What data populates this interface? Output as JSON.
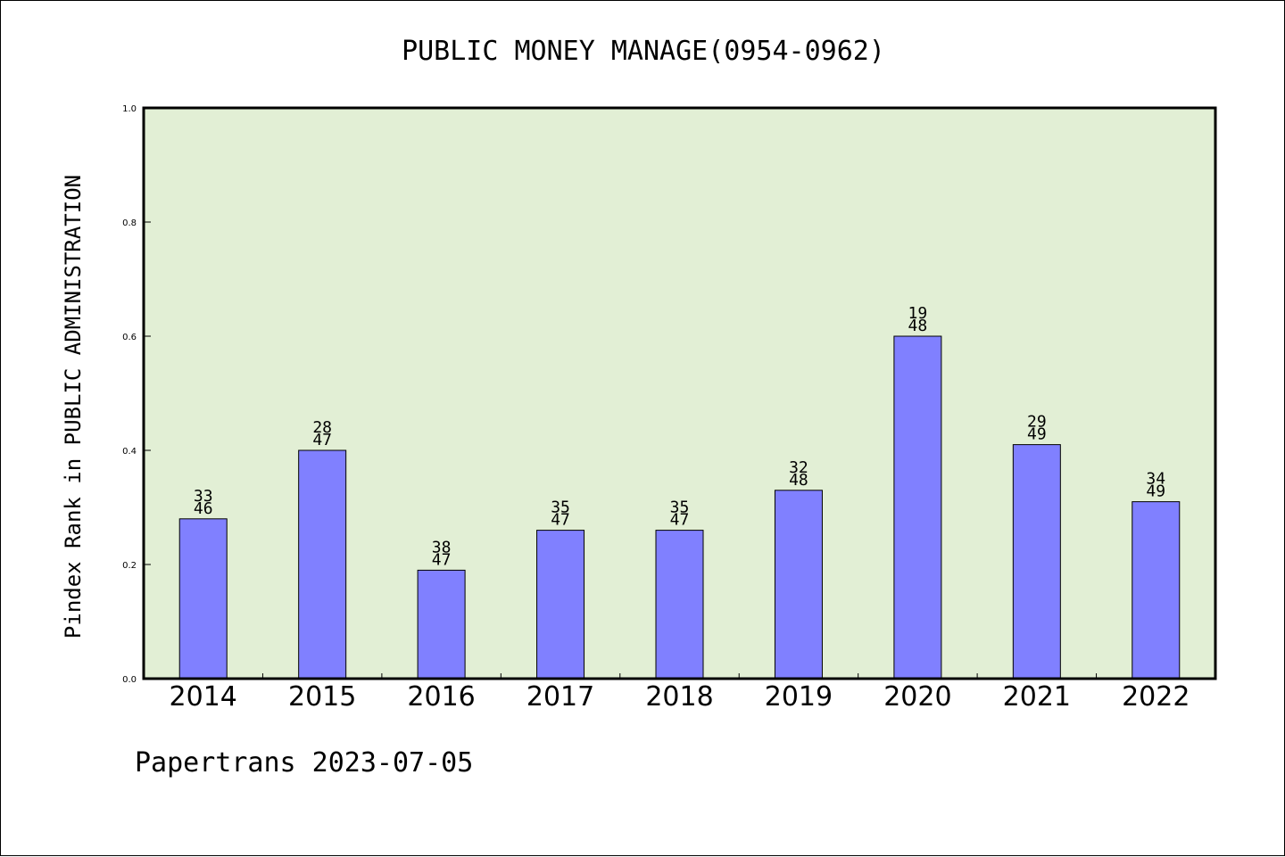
{
  "chart_data": {
    "type": "bar",
    "title": "PUBLIC MONEY MANAGE(0954-0962)",
    "ylabel": "Pindex Rank in PUBLIC ADMINISTRATION",
    "xlabel": "",
    "ylim": [
      0.0,
      1.0
    ],
    "yticks": [
      "0.0",
      "0.2",
      "0.4",
      "0.6",
      "0.8",
      "1.0"
    ],
    "categories": [
      "2014",
      "2015",
      "2016",
      "2017",
      "2018",
      "2019",
      "2020",
      "2021",
      "2022"
    ],
    "values": [
      0.28,
      0.4,
      0.19,
      0.26,
      0.26,
      0.33,
      0.6,
      0.41,
      0.31
    ],
    "rank_labels": [
      "33",
      "28",
      "38",
      "35",
      "35",
      "32",
      "19",
      "29",
      "34"
    ],
    "total_labels": [
      "46",
      "47",
      "47",
      "47",
      "47",
      "48",
      "48",
      "49",
      "49"
    ],
    "grid": false,
    "legend": "none",
    "colors": {
      "plot_background": "#e2efd5",
      "bar_fill": "#8080ff",
      "bar_stroke": "#000000"
    }
  },
  "footer": "Papertrans 2023-07-05"
}
